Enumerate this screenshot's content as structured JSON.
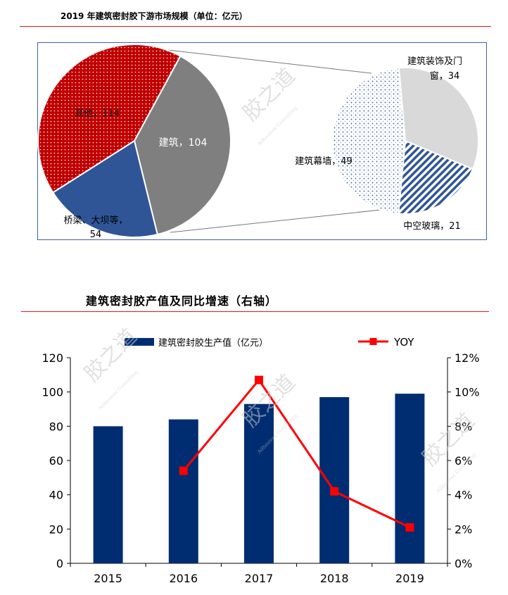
{
  "chart_data": [
    {
      "type": "pie",
      "title": "2019 年建筑密封胶下游市场规模（单位：亿元）",
      "main_pie": {
        "slices": [
          {
            "label": "建筑",
            "value": 104,
            "display": "建筑，104",
            "color": "#7f7f7f",
            "pattern": "solid"
          },
          {
            "label": "桥梁、大坝等",
            "value": 54,
            "display_lines": [
              "桥梁、大坝等，",
              "54"
            ],
            "color": "#2f5597",
            "pattern": "solid"
          },
          {
            "label": "其他",
            "value": 114,
            "display": "其他，114",
            "color": "#c00000",
            "pattern": "dots"
          }
        ]
      },
      "sub_pie": {
        "parent": "建筑",
        "slices": [
          {
            "label": "建筑装饰及门窗",
            "value": 34,
            "display_lines": [
              "建筑装饰及门",
              "窗，34"
            ],
            "color": "#d9d9d9",
            "pattern": "solid"
          },
          {
            "label": "中空玻璃",
            "value": 21,
            "display": "中空玻璃，21",
            "color": "#2f5597",
            "pattern": "diagonal"
          },
          {
            "label": "建筑幕墙",
            "value": 49,
            "display": "建筑幕墙，49",
            "color": "#2f5597",
            "pattern": "grid"
          }
        ]
      }
    },
    {
      "type": "bar",
      "title": "建筑密封胶产值及同比增速（右轴）",
      "categories": [
        "2015",
        "2016",
        "2017",
        "2018",
        "2019"
      ],
      "series": [
        {
          "name": "建筑密封胶生产值（亿元）",
          "values": [
            80,
            84,
            93,
            97,
            99
          ],
          "color": "#002d72",
          "type": "bar",
          "axis": "left"
        },
        {
          "name": "YOY",
          "values": [
            null,
            5.4,
            10.7,
            4.2,
            2.1
          ],
          "color": "#ff0000",
          "type": "line",
          "axis": "right"
        }
      ],
      "ylim": [
        0,
        120
      ],
      "yticks": [
        0,
        20,
        40,
        60,
        80,
        100,
        120
      ],
      "y2lim": [
        0,
        12
      ],
      "y2ticks": [
        "0%",
        "2%",
        "4%",
        "6%",
        "8%",
        "10%",
        "12%"
      ],
      "legend_position": "top"
    }
  ],
  "watermark": {
    "text": "胶之道",
    "sub": "Adhesives Consulting"
  }
}
